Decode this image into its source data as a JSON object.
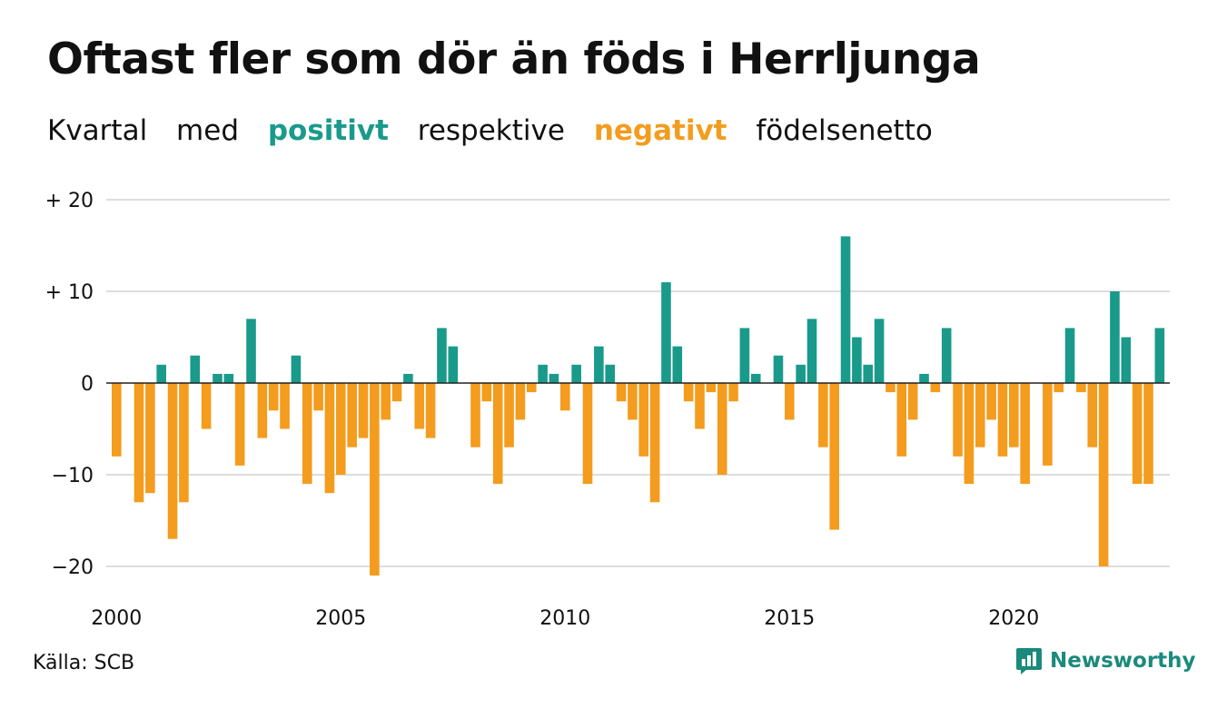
{
  "title": "Oftast fler som dör än föds i Herrljunga",
  "subtitle": {
    "part1": "Kvartal",
    "part2": "med",
    "positive": "positivt",
    "part3": "respektive",
    "negative": "negativt",
    "part4": "födelsenetto"
  },
  "colors": {
    "positive": "#1a9a8a",
    "negative": "#f39c1e",
    "grid": "#dddddd"
  },
  "source": "Källa: SCB",
  "brand": {
    "name": "Newsworthy",
    "icon": "newsworthy-logo-icon"
  },
  "chart_data": {
    "type": "bar",
    "ylim": [
      -22,
      20
    ],
    "y_ticks": [
      {
        "value": 20,
        "label": "+ 20"
      },
      {
        "value": 10,
        "label": "+ 10"
      },
      {
        "value": 0,
        "label": "0"
      },
      {
        "value": -10,
        "label": "−10"
      },
      {
        "value": -20,
        "label": "−20"
      }
    ],
    "x_ticks": [
      "2000",
      "2005",
      "2010",
      "2015",
      "2020"
    ],
    "start_year": 2000,
    "start_quarter": 1,
    "values": [
      -8,
      0,
      -13,
      -12,
      2,
      -17,
      -13,
      3,
      -5,
      1,
      1,
      -9,
      7,
      -6,
      -3,
      -5,
      3,
      -11,
      -3,
      -12,
      -10,
      -7,
      -6,
      -21,
      -4,
      -2,
      1,
      -5,
      -6,
      6,
      4,
      0,
      -7,
      -2,
      -11,
      -7,
      -4,
      -1,
      2,
      1,
      -3,
      2,
      -11,
      4,
      2,
      -2,
      -4,
      -8,
      -13,
      11,
      4,
      -2,
      -5,
      -1,
      -10,
      -2,
      6,
      1,
      0,
      3,
      -4,
      2,
      7,
      -7,
      -16,
      16,
      5,
      2,
      7,
      -1,
      -8,
      -4,
      1,
      -1,
      6,
      -8,
      -11,
      -7,
      -4,
      -8,
      -7,
      -11,
      0,
      -9,
      -1,
      6,
      -1,
      -7,
      -20,
      10,
      5,
      -11,
      -11,
      6
    ],
    "grid": true
  }
}
